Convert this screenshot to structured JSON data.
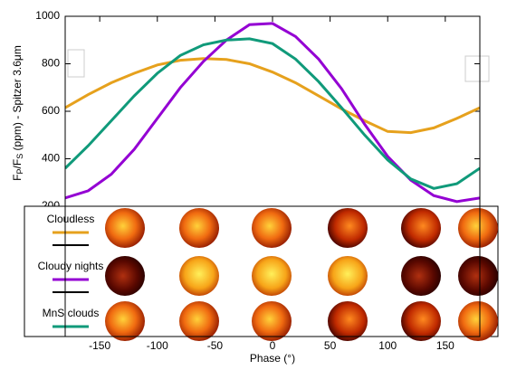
{
  "chart_data": {
    "type": "line",
    "x_label": "Phase (°)",
    "y_label": [
      "F",
      "P",
      "/F",
      "S",
      " (ppm) - Spitzer 3.6μm"
    ],
    "x": [
      -180,
      -160,
      -140,
      -120,
      -100,
      -80,
      -60,
      -40,
      -20,
      0,
      20,
      40,
      60,
      80,
      100,
      120,
      140,
      160,
      180
    ],
    "series": [
      {
        "name": "Cloudless",
        "color": "#e6a11d",
        "values": [
          615,
          670,
          720,
          760,
          795,
          815,
          822,
          818,
          800,
          765,
          720,
          665,
          610,
          560,
          515,
          510,
          530,
          570,
          615
        ]
      },
      {
        "name": "Cloudy nights",
        "color": "#9400d3",
        "values": [
          235,
          265,
          335,
          440,
          570,
          700,
          810,
          900,
          965,
          970,
          915,
          820,
          695,
          545,
          410,
          310,
          245,
          220,
          235
        ]
      },
      {
        "name": "MnS clouds",
        "color": "#109a7a",
        "values": [
          360,
          455,
          560,
          665,
          760,
          835,
          880,
          900,
          905,
          885,
          820,
          725,
          615,
          500,
          395,
          315,
          275,
          295,
          360
        ]
      }
    ],
    "xlim": [
      -180,
      180
    ],
    "xticks": [
      -150,
      -100,
      -50,
      0,
      50,
      100,
      150
    ],
    "ylim": [
      200,
      1000
    ],
    "yticks": [
      200,
      400,
      600,
      800,
      1000
    ]
  }
}
